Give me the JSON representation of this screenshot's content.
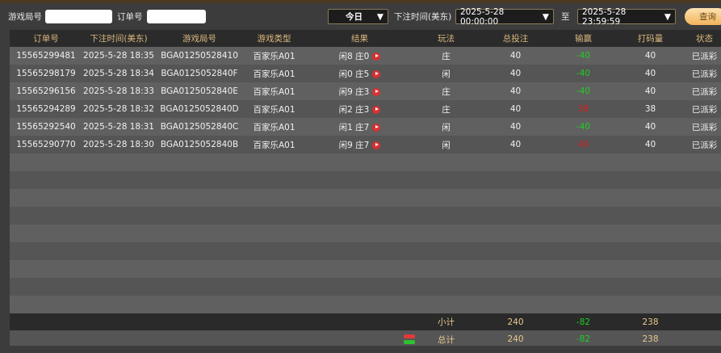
{
  "filters": {
    "round_label": "游戏局号",
    "round_value": "",
    "order_label": "订单号",
    "order_value": "",
    "period": "今日",
    "time_label": "下注时间(美东)",
    "start": "2025-5-28 00:00:00",
    "to_label": "至",
    "end": "2025-5-28 23:59:59",
    "query": "查询"
  },
  "columns": [
    "订单号",
    "下注时间(美东)",
    "游戏局号",
    "游戏类型",
    "结果",
    "玩法",
    "总投注",
    "输赢",
    "打码量",
    "状态"
  ],
  "rows": [
    {
      "order": "15565299481",
      "time": "2025-5-28 18:35",
      "round": "BGA01250528410",
      "type": "百家乐A01",
      "result": "闲8 庄0",
      "play": "庄",
      "bet": "40",
      "win": "-40",
      "valid": "40",
      "status": "已派彩"
    },
    {
      "order": "15565298179",
      "time": "2025-5-28 18:34",
      "round": "BGA0125052840F",
      "type": "百家乐A01",
      "result": "闲0 庄5",
      "play": "闲",
      "bet": "40",
      "win": "-40",
      "valid": "40",
      "status": "已派彩"
    },
    {
      "order": "15565296156",
      "time": "2025-5-28 18:33",
      "round": "BGA0125052840E",
      "type": "百家乐A01",
      "result": "闲9 庄3",
      "play": "庄",
      "bet": "40",
      "win": "-40",
      "valid": "40",
      "status": "已派彩"
    },
    {
      "order": "15565294289",
      "time": "2025-5-28 18:32",
      "round": "BGA0125052840D",
      "type": "百家乐A01",
      "result": "闲2 庄3",
      "play": "庄",
      "bet": "40",
      "win": "38",
      "valid": "38",
      "status": "已派彩"
    },
    {
      "order": "15565292540",
      "time": "2025-5-28 18:31",
      "round": "BGA0125052840C",
      "type": "百家乐A01",
      "result": "闲1 庄7",
      "play": "闲",
      "bet": "40",
      "win": "-40",
      "valid": "40",
      "status": "已派彩"
    },
    {
      "order": "15565290770",
      "time": "2025-5-28 18:30",
      "round": "BGA0125052840B",
      "type": "百家乐A01",
      "result": "闲9 庄7",
      "play": "闲",
      "bet": "40",
      "win": "40",
      "valid": "40",
      "status": "已派彩"
    }
  ],
  "subtotal": {
    "label": "小计",
    "bet": "240",
    "win": "-82",
    "valid": "238"
  },
  "total": {
    "label": "总计",
    "bet": "240",
    "win": "-82",
    "valid": "238"
  },
  "colors": {
    "header_text": "#d9b77d",
    "loss": "#22cc22",
    "win": "#d42020",
    "button": "#f1b35c"
  }
}
